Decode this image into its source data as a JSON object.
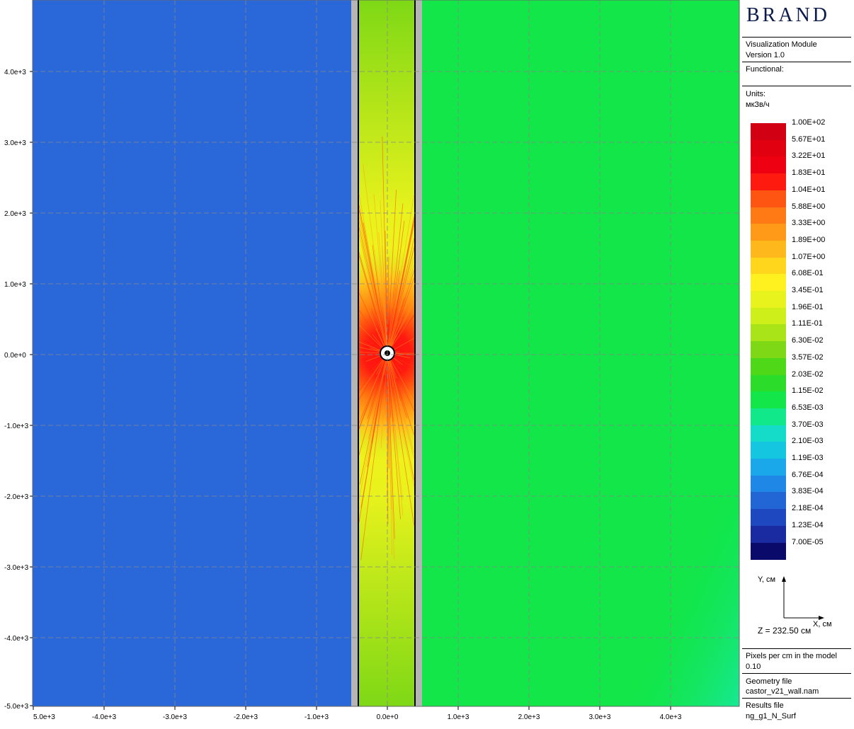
{
  "plot": {
    "x_ticks": [
      "5.0e+3",
      "-4.0e+3",
      "-3.0e+3",
      "-2.0e+3",
      "-1.0e+3",
      "0.0e+0",
      "1.0e+3",
      "2.0e+3",
      "3.0e+3",
      "4.0e+3"
    ],
    "y_ticks": [
      "4.0e+3",
      "3.0e+3",
      "2.0e+3",
      "1.0e+3",
      "0.0e+0",
      "-1.0e+3",
      "-2.0e+3",
      "-3.0e+3",
      "-4.0e+3",
      "-5.0e+3"
    ],
    "colors": {
      "left_region": "#2a67d8",
      "right_region": "#12e648",
      "right_edge": "#18e8a0",
      "wall_band": "#c9f01e",
      "source_core": "#ff0e0e",
      "source_halo": "#ff7a10",
      "wall_frame": "#b5b5b5",
      "grid": "#888888"
    }
  },
  "panel": {
    "brand": "BRAND",
    "module_name": "Visualization Module",
    "version": "Version 1.0",
    "functional_label": "Functional:",
    "units_label": "Units:",
    "units_value": "мкЗв/ч",
    "legend": [
      {
        "label": "1.00E+02",
        "color": "#d10012"
      },
      {
        "label": "5.67E+01",
        "color": "#e0000f"
      },
      {
        "label": "3.22E+01",
        "color": "#ee0012"
      },
      {
        "label": "1.83E+01",
        "color": "#ff1a10"
      },
      {
        "label": "1.04E+01",
        "color": "#ff5512"
      },
      {
        "label": "5.88E+00",
        "color": "#ff7a14"
      },
      {
        "label": "3.33E+00",
        "color": "#ff9a18"
      },
      {
        "label": "1.89E+00",
        "color": "#ffb81c"
      },
      {
        "label": "1.07E+00",
        "color": "#ffd61c"
      },
      {
        "label": "6.08E-01",
        "color": "#fff020"
      },
      {
        "label": "3.45E-01",
        "color": "#e8f21c"
      },
      {
        "label": "1.96E-01",
        "color": "#cfef1a"
      },
      {
        "label": "1.11E-01",
        "color": "#a8e418"
      },
      {
        "label": "6.30E-02",
        "color": "#7ed816"
      },
      {
        "label": "3.57E-02",
        "color": "#4fd818"
      },
      {
        "label": "2.03E-02",
        "color": "#2bdc2a"
      },
      {
        "label": "1.15E-02",
        "color": "#12e648"
      },
      {
        "label": "6.53E-03",
        "color": "#10e88a"
      },
      {
        "label": "3.70E-03",
        "color": "#14dcc8"
      },
      {
        "label": "2.10E-03",
        "color": "#14c6e0"
      },
      {
        "label": "1.19E-03",
        "color": "#1aa8ea"
      },
      {
        "label": "6.76E-04",
        "color": "#1f88e6"
      },
      {
        "label": "3.83E-04",
        "color": "#2266d6"
      },
      {
        "label": "2.18E-04",
        "color": "#1e48c0"
      },
      {
        "label": "1.23E-04",
        "color": "#1a2aa0"
      },
      {
        "label": "7.00E-05",
        "color": "#0a0a6a"
      }
    ],
    "y_axis_label": "Y, см",
    "x_axis_label": "X, см",
    "z_label": "Z = 232.50 см",
    "pixels_label": "Pixels per cm in the model",
    "pixels_value": "0.10",
    "geometry_label": "Geometry file",
    "geometry_value": "castor_v21_wall.nam",
    "results_label": "Results file",
    "results_value": "ng_g1_N_Surf"
  }
}
